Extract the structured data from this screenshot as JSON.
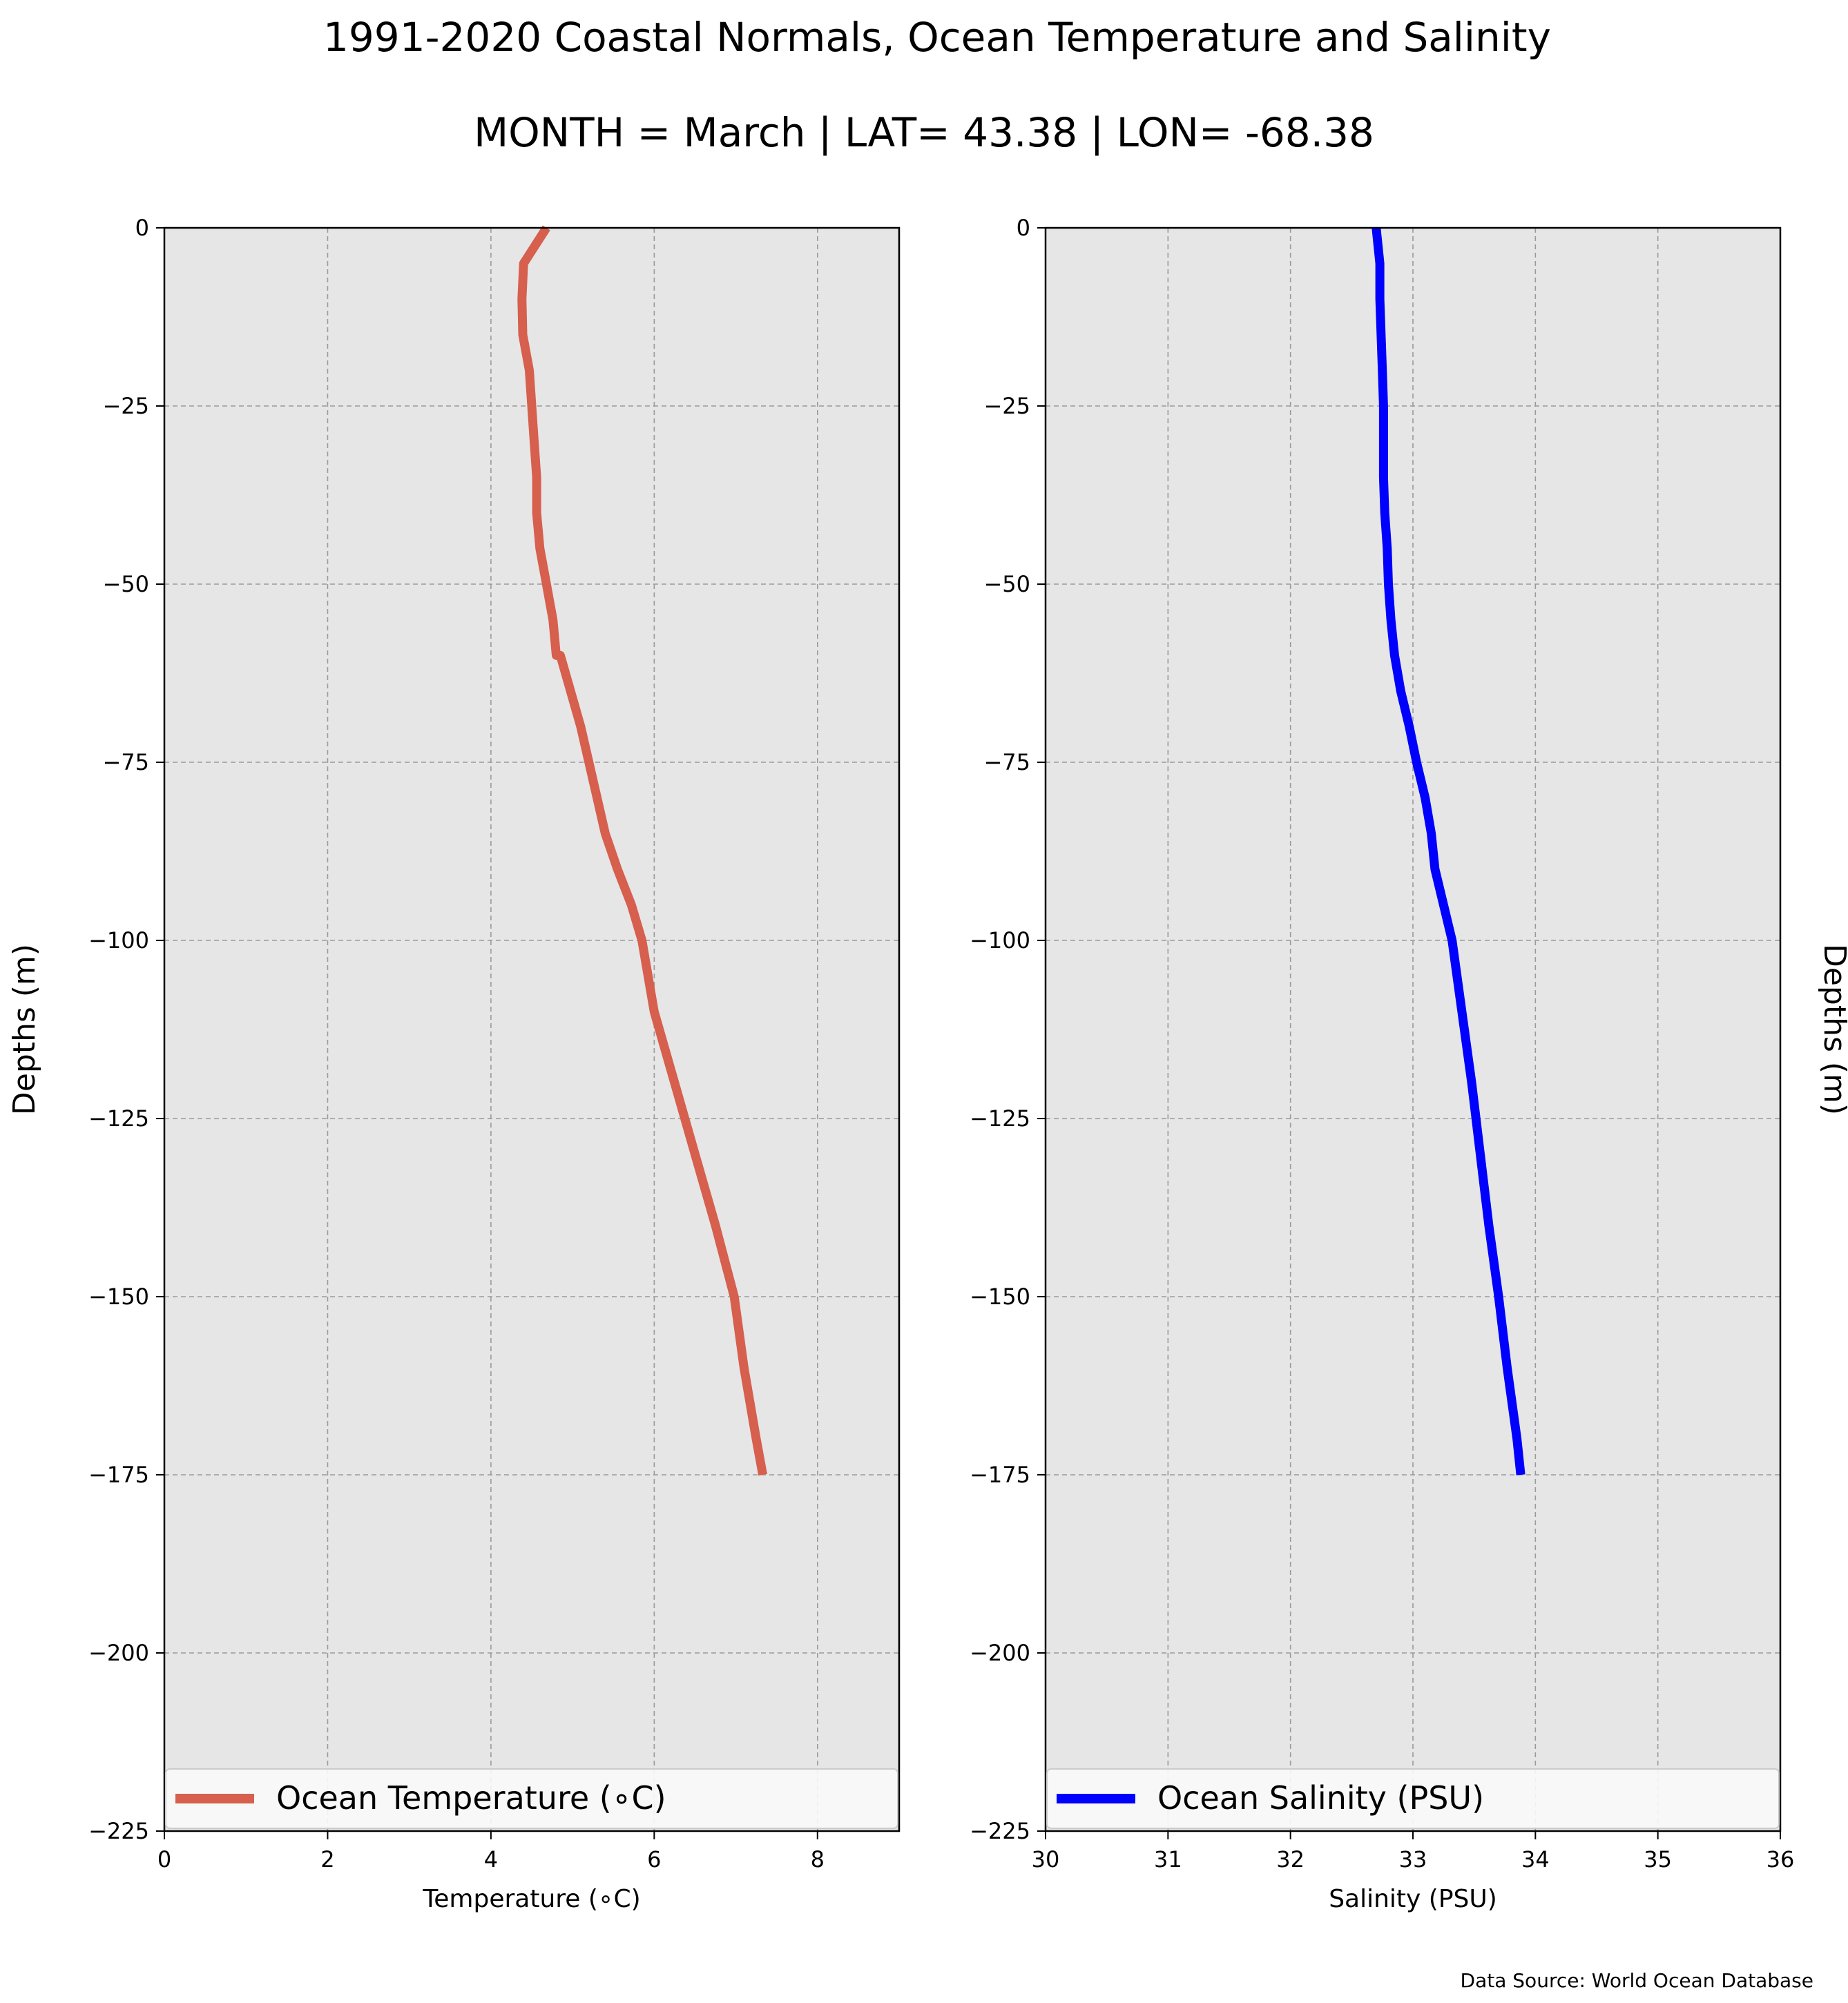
{
  "header": {
    "title": "1991-2020 Coastal Normals, Ocean Temperature and Salinity",
    "subtitle": "MONTH = March | LAT= 43.38 | LON= -68.38"
  },
  "footer": {
    "source": "Data Source: World Ocean Database"
  },
  "colors": {
    "plot_background": "#e6e6e6",
    "grid": "#9a9a9a",
    "temperature": "#d65f4e",
    "salinity": "#0000ff"
  },
  "chart_data": [
    {
      "type": "line",
      "xlabel": "Temperature (∘C)",
      "ylabel": "Depths (m)",
      "xlim": [
        0,
        9
      ],
      "ylim": [
        -225,
        0
      ],
      "xticks": [
        0,
        2,
        4,
        6,
        8
      ],
      "xtick_labels": [
        "0",
        "2",
        "4",
        "6",
        "8"
      ],
      "yticks": [
        0,
        -25,
        -50,
        -75,
        -100,
        -125,
        -150,
        -175,
        -200,
        -225
      ],
      "ytick_labels": [
        "0",
        "−25",
        "−50",
        "−75",
        "−100",
        "−125",
        "−150",
        "−175",
        "−200",
        "−225"
      ],
      "grid": true,
      "legend_placement": "bottom",
      "series": [
        {
          "name": "Ocean Temperature (∘C)",
          "color": "#d65f4e",
          "x": [
            4.68,
            4.4,
            4.38,
            4.39,
            4.47,
            4.5,
            4.53,
            4.56,
            4.56,
            4.6,
            4.68,
            4.76,
            4.8,
            4.85,
            5.1,
            5.3,
            5.4,
            5.55,
            5.72,
            5.85,
            6.0,
            6.25,
            6.5,
            6.75,
            6.98,
            7.1,
            7.25,
            7.33
          ],
          "y": [
            0,
            -5,
            -10,
            -15,
            -20,
            -25,
            -30,
            -35,
            -40,
            -45,
            -50,
            -55,
            -60,
            -60,
            -70,
            -80,
            -85,
            -90,
            -95,
            -100,
            -110,
            -120,
            -130,
            -140,
            -150,
            -160,
            -170,
            -175
          ]
        }
      ]
    },
    {
      "type": "line",
      "xlabel": "Salinity (PSU)",
      "ylabel": "Depths (m)",
      "xlim": [
        30,
        36
      ],
      "ylim": [
        -225,
        0
      ],
      "xticks": [
        30,
        31,
        32,
        33,
        34,
        35,
        36
      ],
      "xtick_labels": [
        "30",
        "31",
        "32",
        "33",
        "34",
        "35",
        "36"
      ],
      "yticks": [
        0,
        -25,
        -50,
        -75,
        -100,
        -125,
        -150,
        -175,
        -200,
        -225
      ],
      "ytick_labels": [
        "0",
        "−25",
        "−50",
        "−75",
        "−100",
        "−125",
        "−150",
        "−175",
        "−200",
        "−225"
      ],
      "grid": true,
      "legend_placement": "bottom",
      "series": [
        {
          "name": "Ocean Salinity (PSU)",
          "color": "#0000ff",
          "x": [
            32.7,
            32.73,
            32.73,
            32.74,
            32.75,
            32.76,
            32.76,
            32.76,
            32.77,
            32.79,
            32.8,
            32.82,
            32.85,
            32.9,
            32.97,
            33.03,
            33.1,
            33.15,
            33.18,
            33.25,
            33.32,
            33.4,
            33.48,
            33.55,
            33.62,
            33.7,
            33.77,
            33.85,
            33.88
          ],
          "y": [
            0,
            -5,
            -10,
            -15,
            -20,
            -25,
            -30,
            -35,
            -40,
            -45,
            -50,
            -55,
            -60,
            -65,
            -70,
            -75,
            -80,
            -85,
            -90,
            -95,
            -100,
            -110,
            -120,
            -130,
            -140,
            -150,
            -160,
            -170,
            -175
          ]
        }
      ]
    }
  ]
}
